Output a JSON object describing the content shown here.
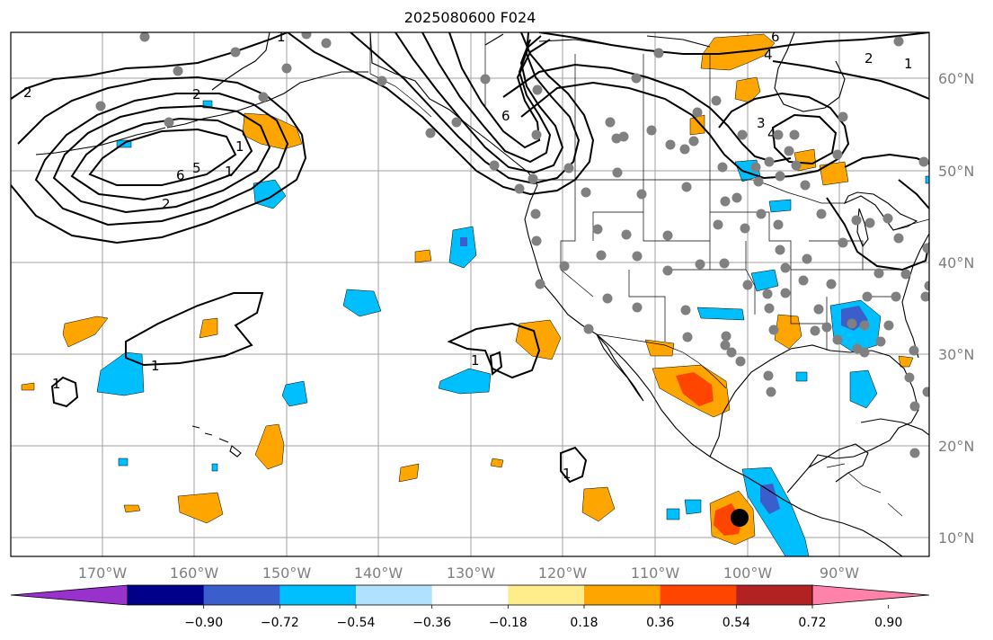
{
  "title": "2025080600 F024",
  "map": {
    "lon_ticks": [
      "170°W",
      "160°W",
      "150°W",
      "140°W",
      "130°W",
      "120°W",
      "110°W",
      "100°W",
      "90°W"
    ],
    "lat_ticks": [
      "10°N",
      "20°N",
      "30°N",
      "40°N",
      "50°N",
      "60°N"
    ],
    "contour_labels": [
      "2",
      "1",
      "6",
      "5",
      "2",
      "1",
      "2",
      "1",
      "6",
      "6",
      "4",
      "2",
      "1",
      "3",
      "4",
      "1",
      "1",
      "1",
      "1"
    ]
  },
  "colorbar": {
    "tick_labels": [
      "−0.90",
      "−0.72",
      "−0.54",
      "−0.36",
      "−0.18",
      "0.18",
      "0.36",
      "0.54",
      "0.72",
      "0.90"
    ],
    "colors": [
      "#9932cc",
      "#00008b",
      "#3a5fcd",
      "#00bfff",
      "#b0e2ff",
      "#ffffff",
      "#ffec8b",
      "#ffa500",
      "#ff4500",
      "#b22222",
      "#ff82ab"
    ]
  },
  "colors": {
    "station_marker": "#808080",
    "highlight_marker": "#000000"
  }
}
